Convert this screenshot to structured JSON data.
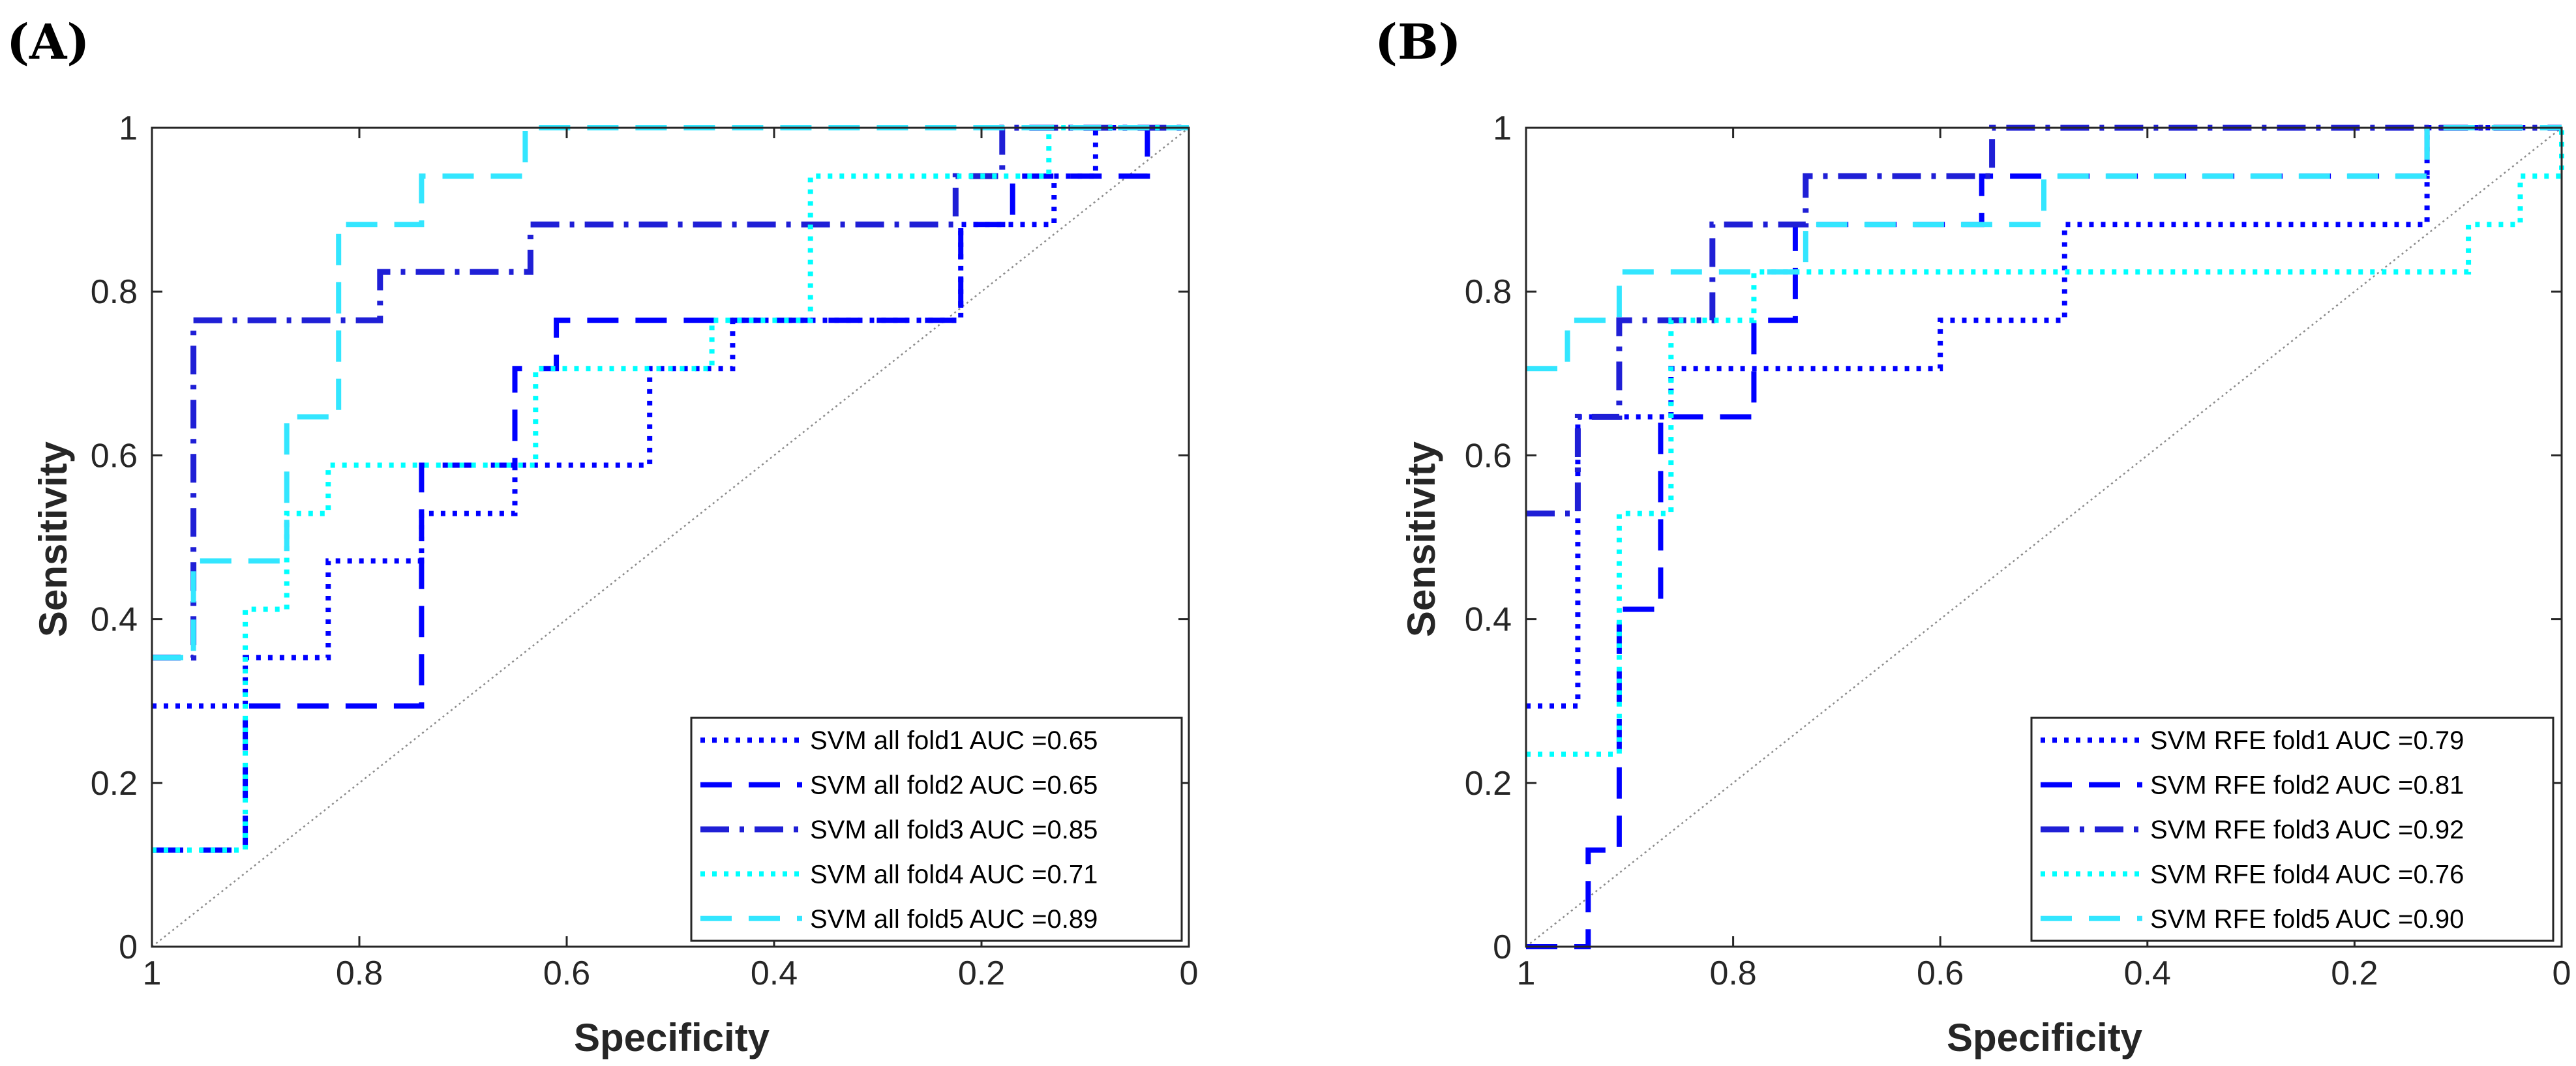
{
  "colors": {
    "blue": "#0000ff",
    "darkblue": "#1f1fd6",
    "cyan": "#00ffff",
    "lightcyan": "#33e6ff",
    "diagonal": "#8c8c8c",
    "axis": "#262626"
  },
  "chart_data": [
    {
      "panel_label": "(A)",
      "type": "line",
      "xlabel": "Specificity",
      "ylabel": "Sensitivity",
      "xlim": [
        1,
        0
      ],
      "ylim": [
        0,
        1
      ],
      "xticks": [
        "1",
        "0.8",
        "0.6",
        "0.4",
        "0.2",
        "0"
      ],
      "yticks": [
        "0",
        "0.2",
        "0.4",
        "0.6",
        "0.8",
        "1"
      ],
      "legend_position": "bottom-right",
      "series": [
        {
          "name": "SVM all fold1 AUC =0.65",
          "style": "dotted",
          "color": "#0000ff",
          "points": [
            [
              1,
              0.294
            ],
            [
              0.91,
              0.294
            ],
            [
              0.91,
              0.353
            ],
            [
              0.83,
              0.353
            ],
            [
              0.83,
              0.471
            ],
            [
              0.74,
              0.471
            ],
            [
              0.74,
              0.529
            ],
            [
              0.65,
              0.529
            ],
            [
              0.65,
              0.588
            ],
            [
              0.52,
              0.588
            ],
            [
              0.52,
              0.706
            ],
            [
              0.44,
              0.706
            ],
            [
              0.44,
              0.765
            ],
            [
              0.22,
              0.765
            ],
            [
              0.22,
              0.882
            ],
            [
              0.13,
              0.882
            ],
            [
              0.13,
              0.941
            ],
            [
              0.09,
              0.941
            ],
            [
              0.09,
              1
            ],
            [
              0,
              1
            ]
          ]
        },
        {
          "name": "SVM all fold2 AUC =0.65",
          "style": "dashed",
          "color": "#0000ff",
          "points": [
            [
              1,
              0.118
            ],
            [
              0.91,
              0.118
            ],
            [
              0.91,
              0.294
            ],
            [
              0.74,
              0.294
            ],
            [
              0.74,
              0.588
            ],
            [
              0.65,
              0.588
            ],
            [
              0.65,
              0.706
            ],
            [
              0.61,
              0.706
            ],
            [
              0.61,
              0.765
            ],
            [
              0.22,
              0.765
            ],
            [
              0.22,
              0.882
            ],
            [
              0.17,
              0.882
            ],
            [
              0.17,
              0.941
            ],
            [
              0.04,
              0.941
            ],
            [
              0.04,
              1
            ],
            [
              0,
              1
            ]
          ]
        },
        {
          "name": "SVM all fold3 AUC =0.85",
          "style": "dashdot",
          "color": "#1f1fd6",
          "points": [
            [
              1,
              0.353
            ],
            [
              0.96,
              0.353
            ],
            [
              0.96,
              0.765
            ],
            [
              0.78,
              0.765
            ],
            [
              0.78,
              0.824
            ],
            [
              0.635,
              0.824
            ],
            [
              0.635,
              0.882
            ],
            [
              0.225,
              0.882
            ],
            [
              0.225,
              0.941
            ],
            [
              0.18,
              0.941
            ],
            [
              0.18,
              1
            ],
            [
              0,
              1
            ]
          ]
        },
        {
          "name": "SVM all fold4 AUC =0.71",
          "style": "dotted",
          "color": "#00ffff",
          "points": [
            [
              1,
              0.118
            ],
            [
              0.91,
              0.118
            ],
            [
              0.91,
              0.412
            ],
            [
              0.87,
              0.412
            ],
            [
              0.87,
              0.529
            ],
            [
              0.83,
              0.529
            ],
            [
              0.83,
              0.588
            ],
            [
              0.63,
              0.588
            ],
            [
              0.63,
              0.706
            ],
            [
              0.46,
              0.706
            ],
            [
              0.46,
              0.765
            ],
            [
              0.365,
              0.765
            ],
            [
              0.365,
              0.941
            ],
            [
              0.135,
              0.941
            ],
            [
              0.135,
              1
            ],
            [
              0,
              1
            ]
          ]
        },
        {
          "name": "SVM all fold5 AUC =0.89",
          "style": "dashed",
          "color": "#33e6ff",
          "points": [
            [
              1,
              0.353
            ],
            [
              0.96,
              0.353
            ],
            [
              0.96,
              0.471
            ],
            [
              0.87,
              0.471
            ],
            [
              0.87,
              0.647
            ],
            [
              0.82,
              0.647
            ],
            [
              0.82,
              0.882
            ],
            [
              0.74,
              0.882
            ],
            [
              0.74,
              0.941
            ],
            [
              0.64,
              0.941
            ],
            [
              0.64,
              1
            ],
            [
              0,
              1
            ]
          ]
        }
      ]
    },
    {
      "panel_label": "(B)",
      "type": "line",
      "xlabel": "Specificity",
      "ylabel": "Sensitivity",
      "xlim": [
        1,
        0
      ],
      "ylim": [
        0,
        1
      ],
      "xticks": [
        "1",
        "0.8",
        "0.6",
        "0.4",
        "0.2",
        "0"
      ],
      "yticks": [
        "0",
        "0.2",
        "0.4",
        "0.6",
        "0.8",
        "1"
      ],
      "legend_position": "bottom-right",
      "series": [
        {
          "name": "SVM RFE fold1 AUC =0.79",
          "style": "dotted",
          "color": "#0000ff",
          "points": [
            [
              1,
              0.294
            ],
            [
              0.95,
              0.294
            ],
            [
              0.95,
              0.647
            ],
            [
              0.86,
              0.647
            ],
            [
              0.86,
              0.706
            ],
            [
              0.6,
              0.706
            ],
            [
              0.6,
              0.765
            ],
            [
              0.48,
              0.765
            ],
            [
              0.48,
              0.882
            ],
            [
              0.13,
              0.882
            ],
            [
              0.13,
              1
            ],
            [
              0,
              1
            ]
          ]
        },
        {
          "name": "SVM RFE fold2 AUC =0.81",
          "style": "dashed",
          "color": "#0000ff",
          "points": [
            [
              1,
              0
            ],
            [
              0.94,
              0
            ],
            [
              0.94,
              0.118
            ],
            [
              0.91,
              0.118
            ],
            [
              0.91,
              0.412
            ],
            [
              0.87,
              0.412
            ],
            [
              0.87,
              0.647
            ],
            [
              0.78,
              0.647
            ],
            [
              0.78,
              0.765
            ],
            [
              0.74,
              0.765
            ],
            [
              0.74,
              0.882
            ],
            [
              0.56,
              0.882
            ],
            [
              0.56,
              0.941
            ],
            [
              0.13,
              0.941
            ],
            [
              0.13,
              1
            ],
            [
              0,
              1
            ]
          ]
        },
        {
          "name": "SVM RFE fold3 AUC =0.92",
          "style": "dashdot",
          "color": "#1f1fd6",
          "points": [
            [
              1,
              0.529
            ],
            [
              0.95,
              0.529
            ],
            [
              0.95,
              0.647
            ],
            [
              0.91,
              0.647
            ],
            [
              0.91,
              0.765
            ],
            [
              0.82,
              0.765
            ],
            [
              0.82,
              0.882
            ],
            [
              0.73,
              0.882
            ],
            [
              0.73,
              0.941
            ],
            [
              0.55,
              0.941
            ],
            [
              0.55,
              1
            ],
            [
              0,
              1
            ]
          ]
        },
        {
          "name": "SVM RFE fold4 AUC =0.76",
          "style": "dotted",
          "color": "#00ffff",
          "points": [
            [
              1,
              0.235
            ],
            [
              0.91,
              0.235
            ],
            [
              0.91,
              0.529
            ],
            [
              0.86,
              0.529
            ],
            [
              0.86,
              0.765
            ],
            [
              0.78,
              0.765
            ],
            [
              0.78,
              0.824
            ],
            [
              0.09,
              0.824
            ],
            [
              0.09,
              0.882
            ],
            [
              0.04,
              0.882
            ],
            [
              0.04,
              0.941
            ],
            [
              0,
              0.941
            ],
            [
              0,
              1
            ]
          ]
        },
        {
          "name": "SVM RFE fold5 AUC =0.90",
          "style": "dashed",
          "color": "#33e6ff",
          "points": [
            [
              1,
              0.706
            ],
            [
              0.96,
              0.706
            ],
            [
              0.96,
              0.765
            ],
            [
              0.91,
              0.765
            ],
            [
              0.91,
              0.824
            ],
            [
              0.73,
              0.824
            ],
            [
              0.73,
              0.882
            ],
            [
              0.5,
              0.882
            ],
            [
              0.5,
              0.941
            ],
            [
              0.13,
              0.941
            ],
            [
              0.13,
              1
            ],
            [
              0,
              1
            ]
          ]
        }
      ]
    }
  ]
}
